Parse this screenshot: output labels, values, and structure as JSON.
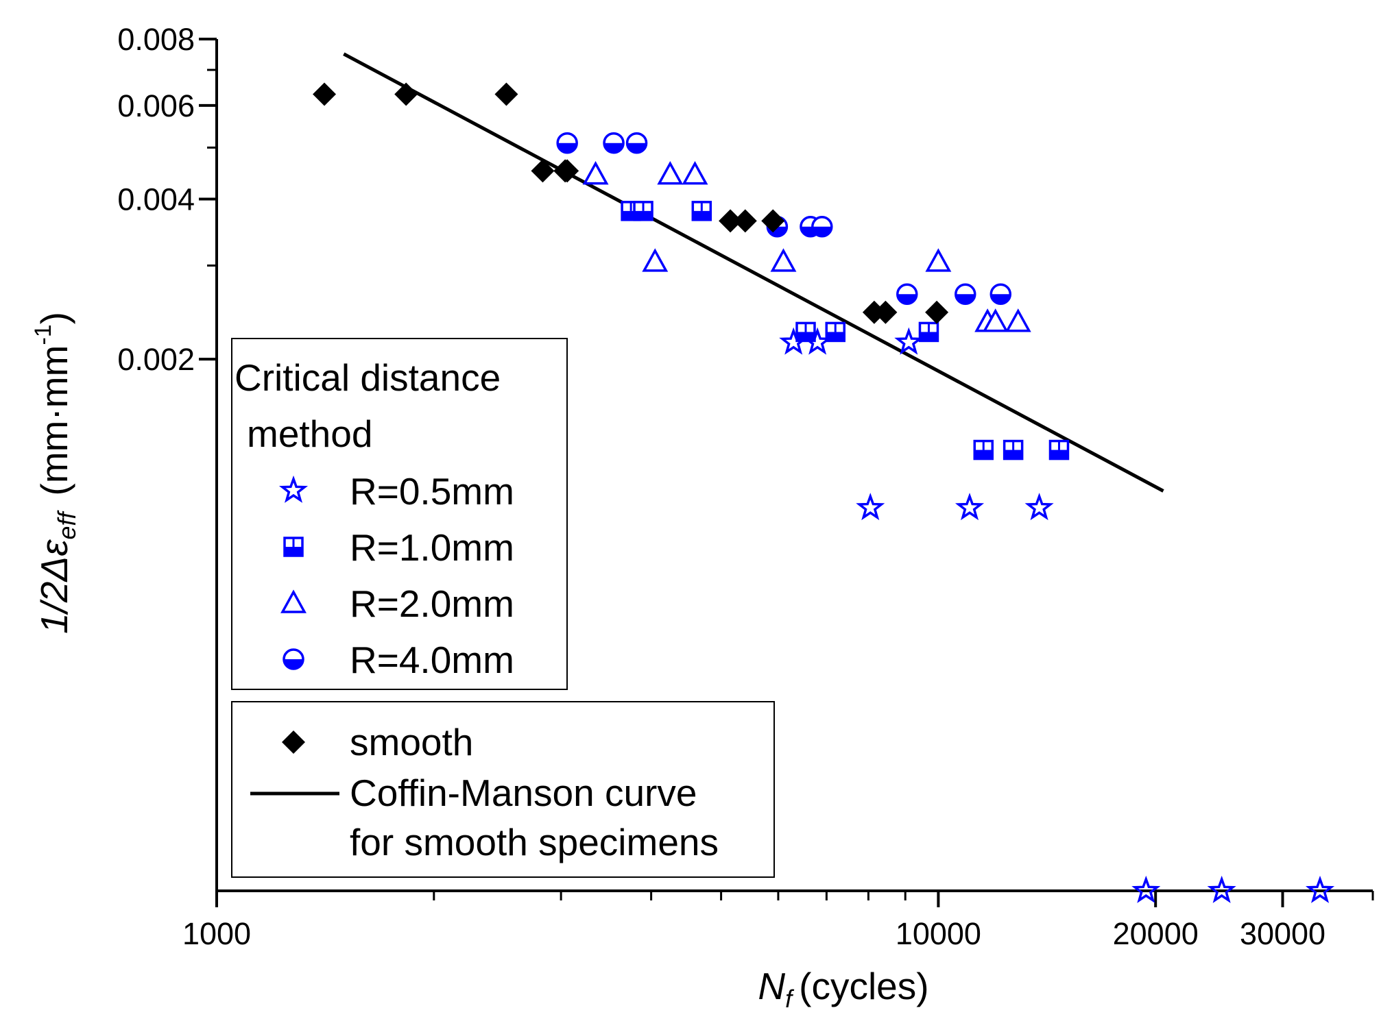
{
  "chart_data": {
    "type": "scatter",
    "xscale": "log",
    "xlim": [
      1000,
      40000
    ],
    "ylim": [
      0.0002,
      0.008
    ],
    "xlabel": {
      "main": "N",
      "sub": "f",
      "unit": "(cycles)"
    },
    "ylabel": {
      "main": "1/2Δε",
      "sub": "eff",
      "unit_pre": "(mm·mm",
      "sup": "-1",
      "unit_post": ")"
    },
    "x_ticks": [
      {
        "value": 1000,
        "label": "1000"
      },
      {
        "value": 10000,
        "label": "10000"
      },
      {
        "value": 20000,
        "label": "20000"
      },
      {
        "value": 30000,
        "label": "30000"
      }
    ],
    "y_ticks": [
      {
        "value": 0.002,
        "label": "0.002"
      },
      {
        "value": 0.004,
        "label": "0.004"
      },
      {
        "value": 0.006,
        "label": "0.006"
      },
      {
        "value": 0.008,
        "label": "0.008"
      }
    ],
    "series": [
      {
        "name": "R=0.5mm",
        "marker": "star",
        "color": "#0000ff",
        "points": [
          [
            6300,
            0.00215
          ],
          [
            6800,
            0.00215
          ],
          [
            9100,
            0.00215
          ],
          [
            8050,
            0.00105
          ],
          [
            11050,
            0.00105
          ],
          [
            13800,
            0.00105
          ],
          [
            19400,
            0.0002
          ],
          [
            24700,
            0.0002
          ],
          [
            33800,
            0.0002
          ]
        ]
      },
      {
        "name": "R=1.0mm",
        "marker": "square-half",
        "color": "#0000ff",
        "points": [
          [
            3750,
            0.0038
          ],
          [
            3900,
            0.0038
          ],
          [
            4700,
            0.0038
          ],
          [
            6550,
            0.00225
          ],
          [
            7200,
            0.00225
          ],
          [
            9700,
            0.00225
          ],
          [
            11550,
            0.00135
          ],
          [
            12700,
            0.00135
          ],
          [
            14700,
            0.00135
          ]
        ]
      },
      {
        "name": "R=2.0mm",
        "marker": "triangle",
        "color": "#0000ff",
        "points": [
          [
            3350,
            0.00445
          ],
          [
            4250,
            0.00445
          ],
          [
            4600,
            0.00445
          ],
          [
            4050,
            0.00305
          ],
          [
            6100,
            0.00305
          ],
          [
            10000,
            0.00305
          ],
          [
            11700,
            0.00235
          ],
          [
            12000,
            0.00235
          ],
          [
            12900,
            0.00235
          ]
        ]
      },
      {
        "name": "R=4.0mm",
        "marker": "circle-half",
        "color": "#0000ff",
        "points": [
          [
            3060,
            0.0051
          ],
          [
            3550,
            0.0051
          ],
          [
            3820,
            0.0051
          ],
          [
            5980,
            0.00355
          ],
          [
            6650,
            0.00355
          ],
          [
            6900,
            0.00355
          ],
          [
            9050,
            0.00265
          ],
          [
            10900,
            0.00265
          ],
          [
            12200,
            0.00265
          ]
        ]
      },
      {
        "name": "smooth",
        "marker": "diamond",
        "color": "#000000",
        "points": [
          [
            1410,
            0.0063
          ],
          [
            1830,
            0.0063
          ],
          [
            2520,
            0.0063
          ],
          [
            2830,
            0.00452
          ],
          [
            3040,
            0.00452
          ],
          [
            3060,
            0.00452
          ],
          [
            5150,
            0.00364
          ],
          [
            5400,
            0.00364
          ],
          [
            5900,
            0.00364
          ],
          [
            8150,
            0.00245
          ],
          [
            8450,
            0.00245
          ],
          [
            9950,
            0.00245
          ]
        ]
      }
    ],
    "fit_line": {
      "name": "Coffin-Manson curve for smooth specimens",
      "color": "#000000",
      "points": [
        [
          1500,
          0.0075
        ],
        [
          20500,
          0.00113
        ]
      ]
    },
    "legend": {
      "position": "left-middle",
      "group_title": "Critical distance method",
      "group_entries": [
        "R=0.5mm",
        "R=1.0mm",
        "R=2.0mm",
        "R=4.0mm"
      ],
      "entries": [
        "smooth",
        "Coffin-Manson curve for smooth specimens"
      ],
      "fit_label_lines": [
        "Coffin-Manson curve",
        "for smooth specimens"
      ]
    }
  }
}
